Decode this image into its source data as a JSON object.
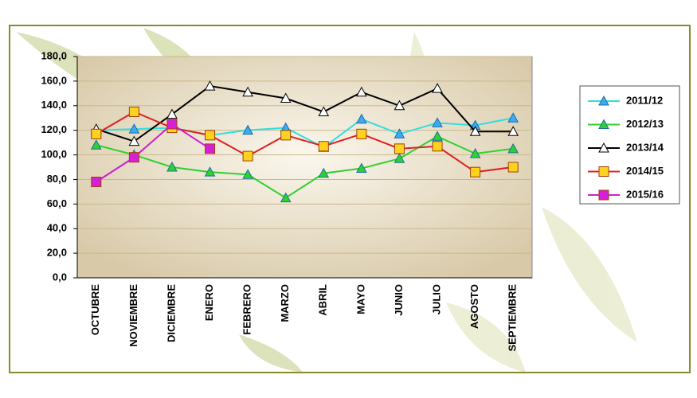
{
  "chart_data": {
    "type": "line",
    "categories": [
      "OCTUBRE",
      "NOVIEMBRE",
      "DICIEMBRE",
      "ENERO",
      "FEBRERO",
      "MARZO",
      "ABRIL",
      "MAYO",
      "JUNIO",
      "JULIO",
      "AGOSTO",
      "SEPTIEMBRE"
    ],
    "series": [
      {
        "name": "2011/12",
        "color": "#33dede",
        "marker": "triangle",
        "marker_color": "#3fa9f5",
        "values": [
          120,
          121,
          122,
          116,
          120,
          122,
          106,
          129,
          117,
          126,
          124,
          130
        ]
      },
      {
        "name": "2012/13",
        "color": "#2ed12e",
        "marker": "triangle",
        "marker_color": "#2ed12e",
        "values": [
          108,
          100,
          90,
          86,
          84,
          65,
          85,
          89,
          97,
          115,
          101,
          105
        ]
      },
      {
        "name": "2013/14",
        "color": "#000000",
        "marker": "triangle",
        "marker_color": "#ffffff",
        "values": [
          121,
          111,
          133,
          156,
          151,
          146,
          135,
          151,
          140,
          154,
          119,
          119
        ]
      },
      {
        "name": "2014/15",
        "color": "#e02020",
        "marker": "square",
        "marker_color": "#ffd21f",
        "values": [
          117,
          135,
          122,
          116,
          99,
          116,
          107,
          117,
          105,
          107,
          86,
          90
        ]
      },
      {
        "name": "2015/16",
        "color": "#cc22cc",
        "marker": "square",
        "marker_color": "#d61fd6",
        "values": [
          78,
          98,
          125,
          105,
          null,
          null,
          null,
          null,
          null,
          null,
          null,
          null
        ]
      }
    ],
    "ylim": [
      0,
      180
    ],
    "yticks": [
      {
        "value": 0,
        "label": "0,0"
      },
      {
        "value": 20,
        "label": "20,0"
      },
      {
        "value": 40,
        "label": "40,0"
      },
      {
        "value": 60,
        "label": "60,0"
      },
      {
        "value": 80,
        "label": "80,0"
      },
      {
        "value": 100,
        "label": "100,0"
      },
      {
        "value": 120,
        "label": "120,0"
      },
      {
        "value": 140,
        "label": "140,0"
      },
      {
        "value": 160,
        "label": "160,0"
      },
      {
        "value": 180,
        "label": "180,0"
      }
    ],
    "grid": true
  }
}
